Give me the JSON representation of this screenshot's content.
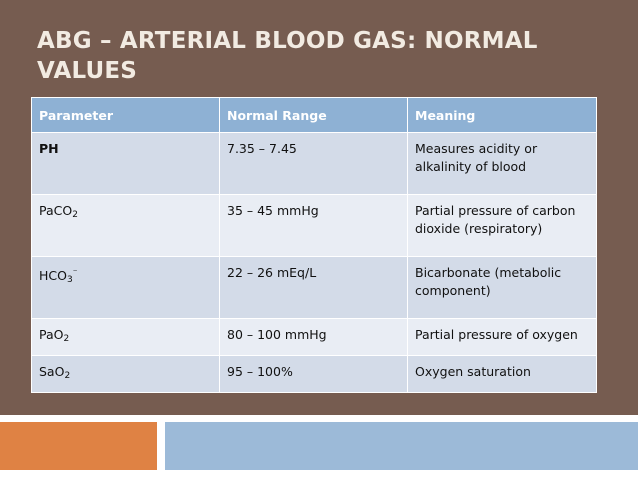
{
  "slide": {
    "title": "ABG – ARTERIAL BLOOD GAS: NORMAL VALUES"
  },
  "table": {
    "headers": [
      "Parameter",
      "Normal Range",
      "Meaning"
    ],
    "rows": [
      {
        "parameter": "PH",
        "range": "7.35 – 7.45",
        "meaning": "Measures acidity or alkalinity of blood"
      },
      {
        "parameter": "PaCO",
        "parameter_sub": "2",
        "range": "35 – 45 mmHg",
        "meaning": "Partial pressure of carbon dioxide (respiratory)"
      },
      {
        "parameter": "HCO",
        "parameter_sub": "3",
        "parameter_sup": "⁻",
        "range": "22 – 26 mEq/L",
        "meaning": "Bicarbonate (metabolic component)"
      },
      {
        "parameter": "PaO",
        "parameter_sub": "2",
        "range": "80 – 100 mmHg",
        "meaning": "Partial pressure of oxygen"
      },
      {
        "parameter": "SaO",
        "parameter_sub": "2",
        "range": "95 – 100%",
        "meaning": "Oxygen saturation"
      }
    ]
  },
  "colors": {
    "background_panel": "#765c50",
    "title_text": "#f2ebe2",
    "table_header": "#8eb1d4",
    "row_dark": "#d3dbe8",
    "row_light": "#e9edf4",
    "footer_orange": "#df8244",
    "footer_blue": "#9cbad8"
  }
}
